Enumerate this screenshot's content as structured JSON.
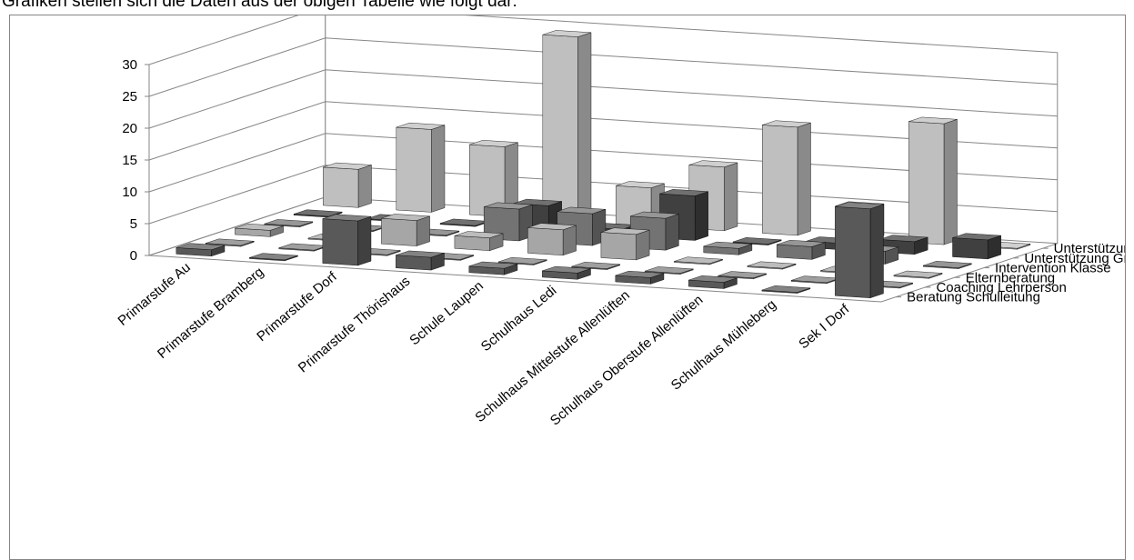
{
  "caption": "Grafiken stellen sich die Daten aus der obigen Tabelle wie folgt dar:",
  "chart_data": {
    "type": "bar",
    "subtype": "3d-column",
    "title": "",
    "categories": [
      "Primarstufe Au",
      "Primarstufe Bramberg",
      "Primarstufe Dorf",
      "Primarstufe Thörishaus",
      "Schule Laupen",
      "Schulhaus Ledi",
      "Schulhaus Mittelstufe Allenlüften",
      "Schulhaus Oberstufe Allenlüften",
      "Schulhaus Mühleberg",
      "Sek I Dorf"
    ],
    "series": [
      {
        "name": "Beratung Schulleitung",
        "color": "#595959",
        "values": [
          1,
          0,
          7,
          2,
          1,
          1,
          1,
          1,
          0,
          14
        ]
      },
      {
        "name": "Coaching Lehrperson",
        "color": "#7f7f7f",
        "values": [
          0,
          0,
          0,
          0,
          0,
          0,
          0,
          0,
          0,
          0
        ]
      },
      {
        "name": "Elternberatung",
        "color": "#a6a6a6",
        "values": [
          1,
          0,
          4,
          2,
          4,
          4,
          0,
          0,
          0,
          0
        ]
      },
      {
        "name": "Intervention Klasse",
        "color": "#737373",
        "values": [
          0,
          0,
          0,
          5,
          5,
          5,
          1,
          2,
          2,
          0
        ]
      },
      {
        "name": "Unterstützung Gruppe",
        "color": "#404040",
        "values": [
          0,
          0,
          0,
          4,
          1,
          7,
          0,
          1,
          2,
          3
        ]
      },
      {
        "name": "Unterstützung Schüler/in",
        "color": "#bfbfbf",
        "values": [
          6,
          13,
          11,
          29,
          6,
          10,
          17,
          5,
          19,
          0
        ]
      }
    ],
    "zlim": [
      0,
      30
    ],
    "z_ticks": [
      "0",
      "5",
      "10",
      "15",
      "20",
      "25",
      "30"
    ],
    "grid": true,
    "legend": "none"
  }
}
